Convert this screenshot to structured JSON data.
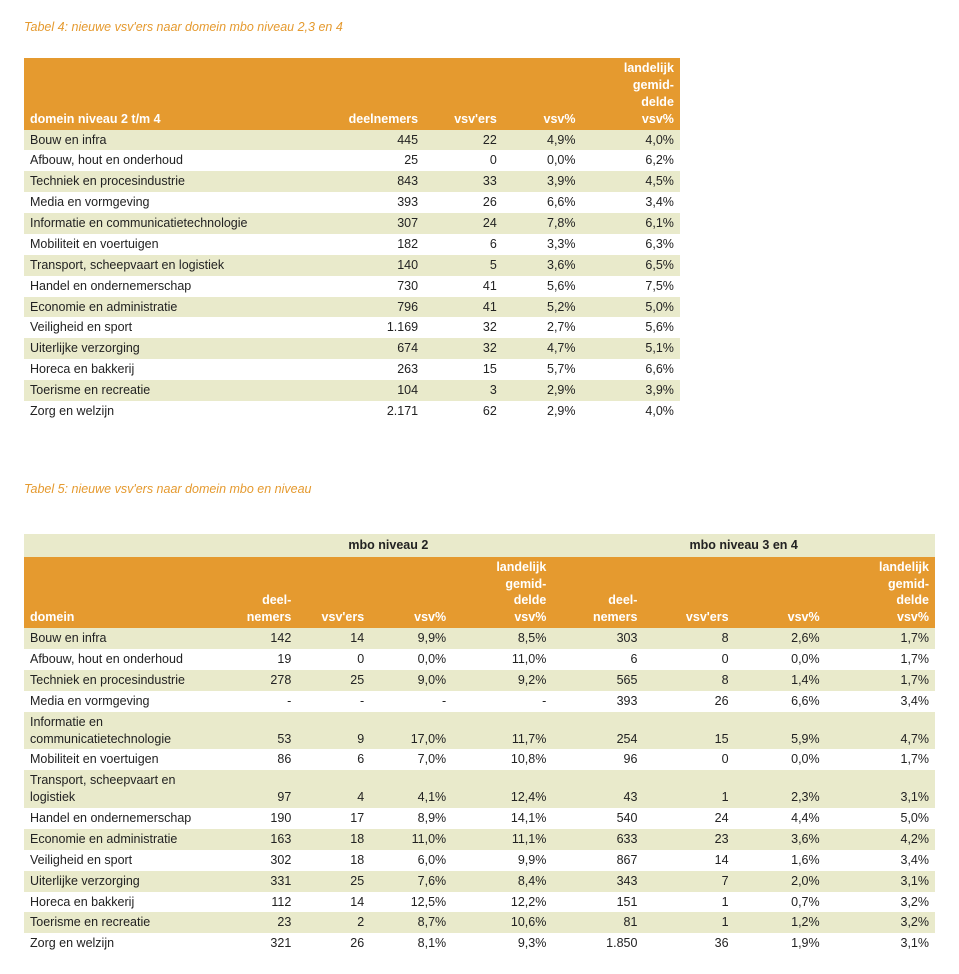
{
  "table4": {
    "caption": "Tabel 4: nieuwe vsv'ers naar domein mbo niveau 2,3 en 4",
    "headers": {
      "domain": "domein niveau 2 t/m 4",
      "deelnemers": "deelnemers",
      "vsvers": "vsv'ers",
      "vsvpct": "vsv%",
      "landelijk1": "landelijk",
      "landelijk2": "gemid-",
      "landelijk3": "delde",
      "landelijk4": "vsv%"
    },
    "rows": [
      {
        "label": "Bouw en infra",
        "deel": "445",
        "vsv": "22",
        "pct": "4,9%",
        "land": "4,0%"
      },
      {
        "label": "Afbouw, hout en onderhoud",
        "deel": "25",
        "vsv": "0",
        "pct": "0,0%",
        "land": "6,2%"
      },
      {
        "label": "Techniek en procesindustrie",
        "deel": "843",
        "vsv": "33",
        "pct": "3,9%",
        "land": "4,5%"
      },
      {
        "label": "Media en vormgeving",
        "deel": "393",
        "vsv": "26",
        "pct": "6,6%",
        "land": "3,4%"
      },
      {
        "label": "Informatie en communicatietechnologie",
        "deel": "307",
        "vsv": "24",
        "pct": "7,8%",
        "land": "6,1%"
      },
      {
        "label": "Mobiliteit en voertuigen",
        "deel": "182",
        "vsv": "6",
        "pct": "3,3%",
        "land": "6,3%"
      },
      {
        "label": "Transport, scheepvaart en logistiek",
        "deel": "140",
        "vsv": "5",
        "pct": "3,6%",
        "land": "6,5%"
      },
      {
        "label": "Handel en ondernemerschap",
        "deel": "730",
        "vsv": "41",
        "pct": "5,6%",
        "land": "7,5%"
      },
      {
        "label": "Economie en administratie",
        "deel": "796",
        "vsv": "41",
        "pct": "5,2%",
        "land": "5,0%"
      },
      {
        "label": "Veiligheid en sport",
        "deel": "1.169",
        "vsv": "32",
        "pct": "2,7%",
        "land": "5,6%"
      },
      {
        "label": "Uiterlijke verzorging",
        "deel": "674",
        "vsv": "32",
        "pct": "4,7%",
        "land": "5,1%"
      },
      {
        "label": "Horeca en bakkerij",
        "deel": "263",
        "vsv": "15",
        "pct": "5,7%",
        "land": "6,6%"
      },
      {
        "label": "Toerisme en recreatie",
        "deel": "104",
        "vsv": "3",
        "pct": "2,9%",
        "land": "3,9%"
      },
      {
        "label": "Zorg en welzijn",
        "deel": "2.171",
        "vsv": "62",
        "pct": "2,9%",
        "land": "4,0%"
      }
    ]
  },
  "table5": {
    "caption": "Tabel 5: nieuwe vsv'ers naar domein mbo en niveau",
    "group1": "mbo niveau 2",
    "group2": "mbo niveau 3 en 4",
    "headers": {
      "domain": "domein",
      "deel1a": "deel-",
      "deel1b": "nemers",
      "vsvers": "vsv'ers",
      "vsvpct": "vsv%",
      "land1": "landelijk",
      "land2": "gemid-",
      "land3": "delde",
      "land4": "vsv%"
    },
    "rows": [
      {
        "label": "Bouw en infra",
        "d1": "142",
        "v1": "14",
        "p1": "9,9%",
        "l1": "8,5%",
        "d2": "303",
        "v2": "8",
        "p2": "2,6%",
        "l2": "1,7%"
      },
      {
        "label": "Afbouw, hout en onderhoud",
        "d1": "19",
        "v1": "0",
        "p1": "0,0%",
        "l1": "11,0%",
        "d2": "6",
        "v2": "0",
        "p2": "0,0%",
        "l2": "1,7%"
      },
      {
        "label": "Techniek en procesindustrie",
        "d1": "278",
        "v1": "25",
        "p1": "9,0%",
        "l1": "9,2%",
        "d2": "565",
        "v2": "8",
        "p2": "1,4%",
        "l2": "1,7%"
      },
      {
        "label": "Media en vormgeving",
        "d1": "-",
        "v1": "-",
        "p1": "-",
        "l1": "-",
        "d2": "393",
        "v2": "26",
        "p2": "6,6%",
        "l2": "3,4%"
      },
      {
        "label": "Informatie en communicatietechnologie",
        "d1": "53",
        "v1": "9",
        "p1": "17,0%",
        "l1": "11,7%",
        "d2": "254",
        "v2": "15",
        "p2": "5,9%",
        "l2": "4,7%"
      },
      {
        "label": "Mobiliteit en voertuigen",
        "d1": "86",
        "v1": "6",
        "p1": "7,0%",
        "l1": "10,8%",
        "d2": "96",
        "v2": "0",
        "p2": "0,0%",
        "l2": "1,7%"
      },
      {
        "label": "Transport, scheepvaart en logistiek",
        "d1": "97",
        "v1": "4",
        "p1": "4,1%",
        "l1": "12,4%",
        "d2": "43",
        "v2": "1",
        "p2": "2,3%",
        "l2": "3,1%"
      },
      {
        "label": "Handel en ondernemerschap",
        "d1": "190",
        "v1": "17",
        "p1": "8,9%",
        "l1": "14,1%",
        "d2": "540",
        "v2": "24",
        "p2": "4,4%",
        "l2": "5,0%"
      },
      {
        "label": "Economie en administratie",
        "d1": "163",
        "v1": "18",
        "p1": "11,0%",
        "l1": "11,1%",
        "d2": "633",
        "v2": "23",
        "p2": "3,6%",
        "l2": "4,2%"
      },
      {
        "label": "Veiligheid en sport",
        "d1": "302",
        "v1": "18",
        "p1": "6,0%",
        "l1": "9,9%",
        "d2": "867",
        "v2": "14",
        "p2": "1,6%",
        "l2": "3,4%"
      },
      {
        "label": "Uiterlijke verzorging",
        "d1": "331",
        "v1": "25",
        "p1": "7,6%",
        "l1": "8,4%",
        "d2": "343",
        "v2": "7",
        "p2": "2,0%",
        "l2": "3,1%"
      },
      {
        "label": "Horeca en bakkerij",
        "d1": "112",
        "v1": "14",
        "p1": "12,5%",
        "l1": "12,2%",
        "d2": "151",
        "v2": "1",
        "p2": "0,7%",
        "l2": "3,2%"
      },
      {
        "label": "Toerisme en recreatie",
        "d1": "23",
        "v1": "2",
        "p1": "8,7%",
        "l1": "10,6%",
        "d2": "81",
        "v2": "1",
        "p2": "1,2%",
        "l2": "3,2%"
      },
      {
        "label": "Zorg en welzijn",
        "d1": "321",
        "v1": "26",
        "p1": "8,1%",
        "l1": "9,3%",
        "d2": "1.850",
        "v2": "36",
        "p2": "1,9%",
        "l2": "3,1%"
      }
    ]
  },
  "colors": {
    "accent": "#e59a2f",
    "stripe": "#e9eacb",
    "text": "#222222",
    "bg": "#ffffff"
  }
}
